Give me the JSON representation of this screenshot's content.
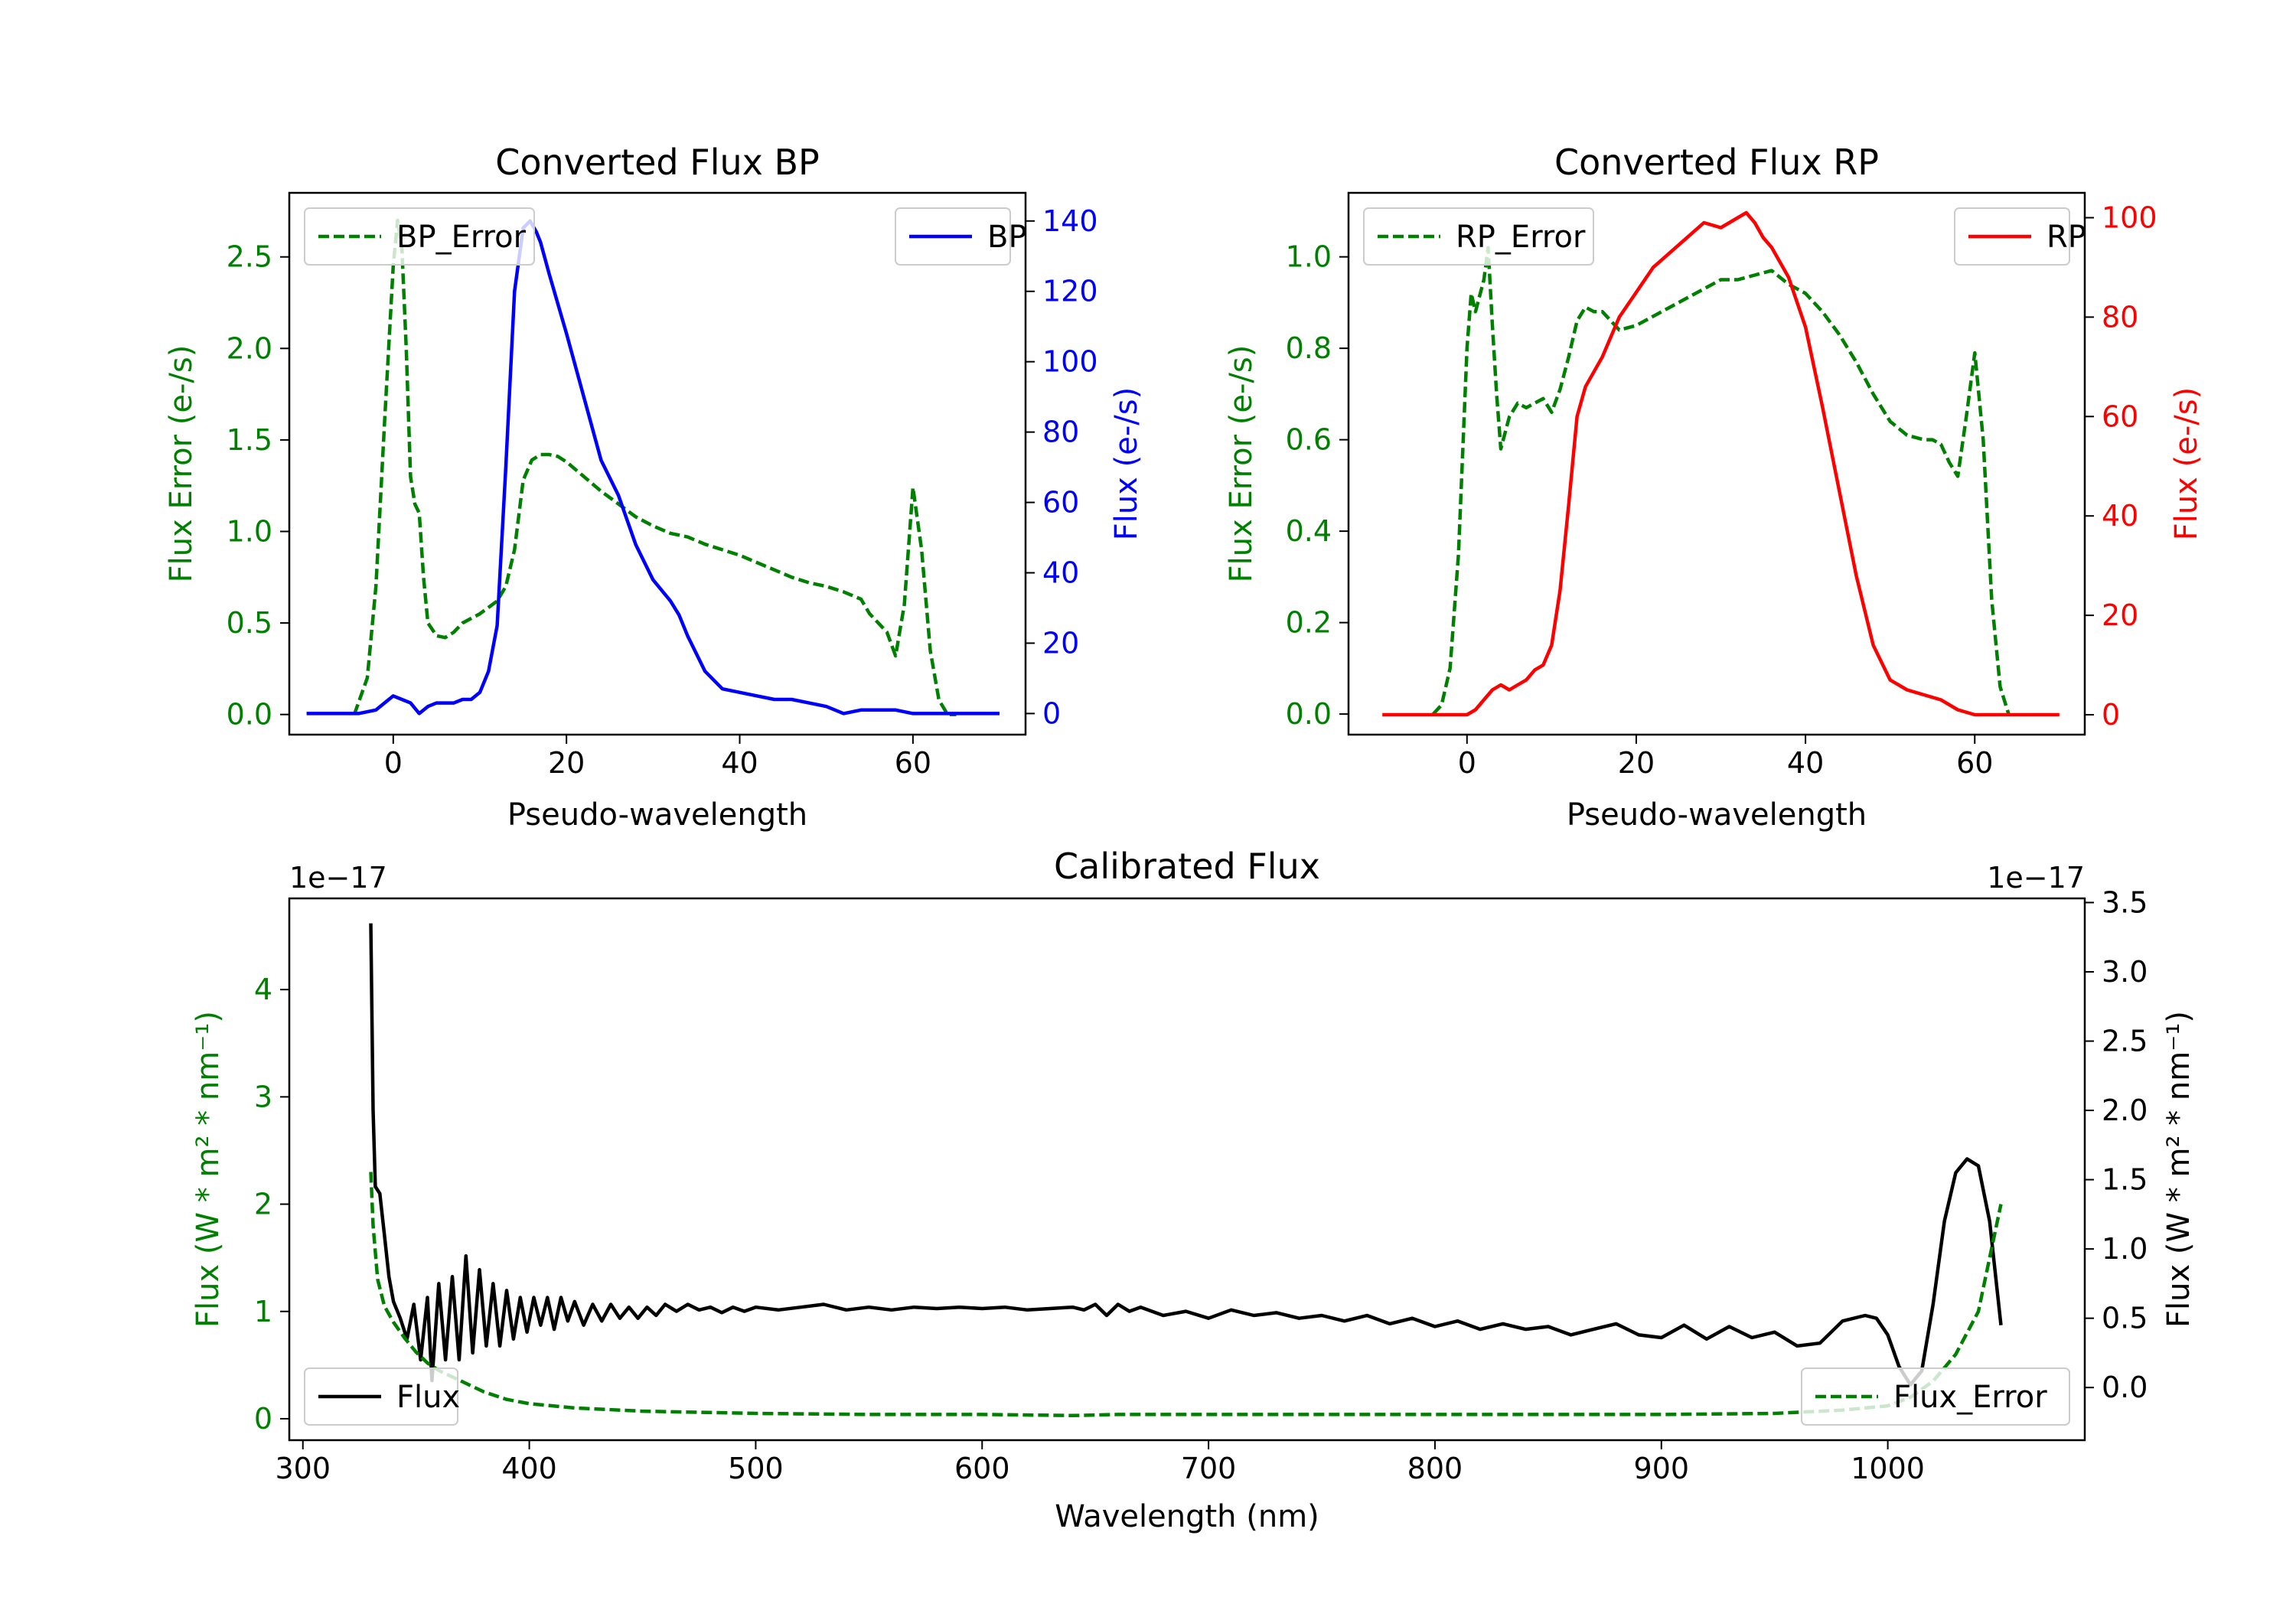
{
  "chart_data": [
    {
      "id": "bp",
      "type": "line",
      "title": "Converted Flux BP",
      "xlabel": "Pseudo-wavelength",
      "ylabel_left": "Flux Error (e-/s)",
      "ylabel_right": "Flux (e-/s)",
      "xlim": [
        -12,
        73
      ],
      "ylim_left": [
        -0.11,
        2.85
      ],
      "ylim_right": [
        -6,
        148
      ],
      "xticks": [
        0,
        20,
        40,
        60
      ],
      "xtick_labels": [
        "0",
        "20",
        "40",
        "60"
      ],
      "yticks_left": [
        0.0,
        0.5,
        1.0,
        1.5,
        2.0,
        2.5
      ],
      "ytick_labels_left": [
        "0.0",
        "0.5",
        "1.0",
        "1.5",
        "2.0",
        "2.5"
      ],
      "yticks_right": [
        0,
        20,
        40,
        60,
        80,
        100,
        120,
        140
      ],
      "ytick_labels_right": [
        "0",
        "20",
        "40",
        "60",
        "80",
        "100",
        "120",
        "140"
      ],
      "colors": {
        "left_axis": "#008000",
        "right_axis": "#0000ff"
      },
      "legend_left": {
        "label": "BP_Error",
        "position": "upper left"
      },
      "legend_right": {
        "label": "BP",
        "position": "upper right"
      },
      "series": [
        {
          "name": "BP_Error",
          "axis": "left",
          "color": "#008000",
          "style": "dashed",
          "x": [
            -4.5,
            -3,
            -2,
            -1,
            0,
            0.5,
            1,
            1.5,
            2,
            2.5,
            3,
            3.5,
            4,
            5,
            6,
            7,
            8,
            10,
            12,
            13,
            14,
            15,
            16,
            17,
            18,
            19,
            20,
            22,
            24,
            26,
            28,
            30,
            32,
            34,
            36,
            38,
            40,
            42,
            44,
            46,
            48,
            50,
            52,
            54,
            55,
            56,
            57,
            58,
            59,
            60,
            61,
            62,
            63,
            64,
            65
          ],
          "values": [
            0.0,
            0.2,
            0.7,
            1.6,
            2.45,
            2.7,
            2.55,
            2.0,
            1.3,
            1.15,
            1.1,
            0.75,
            0.5,
            0.43,
            0.42,
            0.45,
            0.5,
            0.55,
            0.62,
            0.7,
            0.9,
            1.28,
            1.39,
            1.42,
            1.42,
            1.41,
            1.38,
            1.3,
            1.22,
            1.15,
            1.08,
            1.03,
            0.99,
            0.97,
            0.93,
            0.9,
            0.87,
            0.83,
            0.79,
            0.75,
            0.72,
            0.7,
            0.67,
            0.63,
            0.55,
            0.5,
            0.45,
            0.32,
            0.6,
            1.24,
            0.9,
            0.35,
            0.08,
            0.0,
            0.0
          ]
        },
        {
          "name": "BP",
          "axis": "right",
          "color": "#0000ff",
          "style": "solid",
          "x": [
            -10,
            -6,
            -4,
            -2,
            0,
            1,
            2,
            3,
            4,
            5,
            6,
            7,
            8,
            9,
            10,
            11,
            12,
            13,
            14,
            15,
            15.8,
            16.5,
            17,
            18,
            20,
            22,
            24,
            26,
            28,
            30,
            32,
            33,
            34,
            36,
            38,
            40,
            42,
            44,
            46,
            48,
            50,
            52,
            54,
            56,
            58,
            60,
            62,
            64,
            66,
            70
          ],
          "values": [
            0,
            0,
            0,
            1,
            5,
            4,
            3,
            0,
            2,
            3,
            3,
            3,
            4,
            4,
            6,
            12,
            25,
            70,
            120,
            138,
            140,
            137,
            134,
            125,
            108,
            90,
            72,
            62,
            48,
            38,
            32,
            28,
            22,
            12,
            7,
            6,
            5,
            4,
            4,
            3,
            2,
            0,
            1,
            1,
            1,
            0,
            0,
            0,
            0,
            0
          ]
        }
      ]
    },
    {
      "id": "rp",
      "type": "line",
      "title": "Converted Flux RP",
      "xlabel": "Pseudo-wavelength",
      "ylabel_left": "Flux Error (e-/s)",
      "ylabel_right": "Flux (e-/s)",
      "xlim": [
        -14,
        73
      ],
      "ylim_left": [
        -0.045,
        1.14
      ],
      "ylim_right": [
        -4,
        105
      ],
      "xticks": [
        0,
        20,
        40,
        60
      ],
      "xtick_labels": [
        "0",
        "20",
        "40",
        "60"
      ],
      "yticks_left": [
        0.0,
        0.2,
        0.4,
        0.6,
        0.8,
        1.0
      ],
      "ytick_labels_left": [
        "0.0",
        "0.2",
        "0.4",
        "0.6",
        "0.8",
        "1.0"
      ],
      "yticks_right": [
        0,
        20,
        40,
        60,
        80,
        100
      ],
      "ytick_labels_right": [
        "0",
        "20",
        "40",
        "60",
        "80",
        "100"
      ],
      "colors": {
        "left_axis": "#008000",
        "right_axis": "#ff0000"
      },
      "legend_left": {
        "label": "RP_Error",
        "position": "upper left"
      },
      "legend_right": {
        "label": "RP",
        "position": "upper right"
      },
      "series": [
        {
          "name": "RP_Error",
          "axis": "left",
          "color": "#008000",
          "style": "dashed",
          "x": [
            -4,
            -3,
            -2,
            -1,
            0,
            0.5,
            1,
            2,
            2.5,
            3,
            3.5,
            4,
            5,
            6,
            7,
            8,
            9,
            10,
            11,
            12,
            13,
            14,
            15,
            16,
            18,
            20,
            22,
            24,
            26,
            28,
            30,
            32,
            34,
            36,
            38,
            40,
            42,
            44,
            46,
            48,
            50,
            52,
            54,
            55,
            56,
            57,
            58,
            59,
            60,
            61,
            62,
            63,
            64
          ],
          "values": [
            0.0,
            0.02,
            0.1,
            0.35,
            0.8,
            0.92,
            0.88,
            0.95,
            1.02,
            0.85,
            0.7,
            0.58,
            0.65,
            0.68,
            0.67,
            0.68,
            0.69,
            0.66,
            0.71,
            0.78,
            0.86,
            0.89,
            0.88,
            0.88,
            0.84,
            0.85,
            0.87,
            0.89,
            0.91,
            0.93,
            0.95,
            0.95,
            0.96,
            0.97,
            0.94,
            0.92,
            0.88,
            0.83,
            0.77,
            0.7,
            0.64,
            0.61,
            0.6,
            0.6,
            0.59,
            0.55,
            0.52,
            0.65,
            0.79,
            0.6,
            0.25,
            0.06,
            0.0
          ]
        },
        {
          "name": "RP",
          "axis": "right",
          "color": "#ff0000",
          "style": "solid",
          "x": [
            -10,
            -4,
            -2,
            0,
            1,
            2,
            3,
            4,
            5,
            6,
            7,
            8,
            9,
            10,
            11,
            12,
            13,
            14,
            16,
            18,
            20,
            22,
            24,
            26,
            28,
            30,
            32,
            33,
            34,
            35,
            36,
            38,
            40,
            42,
            44,
            46,
            48,
            50,
            52,
            54,
            56,
            58,
            60,
            62,
            64,
            70
          ],
          "values": [
            0,
            0,
            0,
            0,
            1,
            3,
            5,
            6,
            5,
            6,
            7,
            9,
            10,
            14,
            25,
            42,
            60,
            66,
            72,
            80,
            85,
            90,
            93,
            96,
            99,
            98,
            100,
            101,
            99,
            96,
            94,
            88,
            78,
            62,
            45,
            28,
            14,
            7,
            5,
            4,
            3,
            1,
            0,
            0,
            0,
            0
          ]
        }
      ]
    },
    {
      "id": "calibrated",
      "type": "line",
      "title": "Calibrated Flux",
      "xlabel": "Wavelength (nm)",
      "ylabel_left": "Flux (W * m² * nm⁻¹)",
      "ylabel_right": "Flux (W * m² * nm⁻¹)",
      "offset_left": "1e−17",
      "offset_right": "1e−17",
      "xlim": [
        294,
        1087
      ],
      "ylim_left": [
        -0.2,
        4.85
      ],
      "ylim_right": [
        -0.38,
        3.53
      ],
      "xticks": [
        300,
        400,
        500,
        600,
        700,
        800,
        900,
        1000
      ],
      "xtick_labels": [
        "300",
        "400",
        "500",
        "600",
        "700",
        "800",
        "900",
        "1000"
      ],
      "yticks_left": [
        0,
        1,
        2,
        3,
        4
      ],
      "ytick_labels_left": [
        "0",
        "1",
        "2",
        "3",
        "4"
      ],
      "yticks_right": [
        0.0,
        0.5,
        1.0,
        1.5,
        2.0,
        2.5,
        3.0,
        3.5
      ],
      "ytick_labels_right": [
        "0.0",
        "0.5",
        "1.0",
        "1.5",
        "2.0",
        "2.5",
        "3.0",
        "3.5"
      ],
      "colors": {
        "left_axis": "#008000",
        "right_axis": "#000000"
      },
      "legend_left": {
        "label": "Flux",
        "position": "lower left"
      },
      "legend_right": {
        "label": "Flux_Error",
        "position": "lower right"
      },
      "series": [
        {
          "name": "Flux",
          "axis": "right",
          "color": "#000000",
          "style": "solid",
          "x": [
            330,
            331,
            332,
            334,
            336,
            338,
            340,
            343,
            346,
            349,
            352,
            355,
            357,
            360,
            363,
            366,
            369,
            372,
            375,
            378,
            381,
            384,
            387,
            390,
            393,
            396,
            399,
            402,
            405,
            408,
            411,
            414,
            417,
            420,
            424,
            428,
            432,
            436,
            440,
            444,
            448,
            452,
            456,
            460,
            465,
            470,
            475,
            480,
            485,
            490,
            495,
            500,
            510,
            520,
            530,
            540,
            550,
            560,
            570,
            580,
            590,
            600,
            610,
            620,
            630,
            640,
            645,
            650,
            655,
            660,
            665,
            670,
            680,
            690,
            700,
            710,
            720,
            730,
            740,
            750,
            760,
            770,
            780,
            790,
            800,
            810,
            820,
            830,
            840,
            850,
            860,
            870,
            880,
            890,
            900,
            910,
            920,
            930,
            940,
            950,
            960,
            970,
            980,
            990,
            995,
            1000,
            1005,
            1010,
            1015,
            1020,
            1025,
            1030,
            1035,
            1040,
            1045,
            1050
          ],
          "values": [
            3.35,
            2.0,
            1.45,
            1.4,
            1.1,
            0.8,
            0.62,
            0.5,
            0.35,
            0.6,
            0.2,
            0.65,
            0.05,
            0.75,
            0.2,
            0.8,
            0.2,
            0.95,
            0.25,
            0.85,
            0.3,
            0.75,
            0.3,
            0.7,
            0.35,
            0.65,
            0.4,
            0.65,
            0.45,
            0.65,
            0.42,
            0.65,
            0.48,
            0.62,
            0.45,
            0.6,
            0.48,
            0.6,
            0.5,
            0.58,
            0.5,
            0.58,
            0.52,
            0.6,
            0.55,
            0.6,
            0.56,
            0.58,
            0.54,
            0.58,
            0.55,
            0.58,
            0.56,
            0.58,
            0.6,
            0.56,
            0.58,
            0.56,
            0.58,
            0.57,
            0.58,
            0.57,
            0.58,
            0.56,
            0.57,
            0.58,
            0.56,
            0.6,
            0.52,
            0.6,
            0.55,
            0.58,
            0.52,
            0.55,
            0.5,
            0.56,
            0.52,
            0.54,
            0.5,
            0.52,
            0.48,
            0.52,
            0.46,
            0.5,
            0.44,
            0.48,
            0.42,
            0.46,
            0.42,
            0.44,
            0.38,
            0.42,
            0.46,
            0.38,
            0.36,
            0.45,
            0.35,
            0.44,
            0.36,
            0.4,
            0.3,
            0.32,
            0.48,
            0.52,
            0.5,
            0.38,
            0.15,
            0.02,
            0.12,
            0.6,
            1.2,
            1.55,
            1.65,
            1.6,
            1.2,
            0.45
          ]
        },
        {
          "name": "Flux_Error",
          "axis": "left",
          "color": "#008000",
          "style": "dashed",
          "x": [
            330,
            331,
            333,
            336,
            340,
            345,
            350,
            355,
            360,
            370,
            380,
            390,
            400,
            420,
            450,
            500,
            550,
            600,
            640,
            660,
            700,
            800,
            900,
            950,
            980,
            1000,
            1010,
            1020,
            1030,
            1040,
            1045,
            1050
          ],
          "values": [
            2.3,
            1.8,
            1.3,
            1.05,
            0.9,
            0.75,
            0.62,
            0.52,
            0.45,
            0.35,
            0.25,
            0.18,
            0.14,
            0.1,
            0.07,
            0.05,
            0.04,
            0.04,
            0.03,
            0.04,
            0.04,
            0.04,
            0.04,
            0.05,
            0.08,
            0.12,
            0.2,
            0.35,
            0.6,
            1.0,
            1.5,
            2.0
          ]
        }
      ]
    }
  ]
}
